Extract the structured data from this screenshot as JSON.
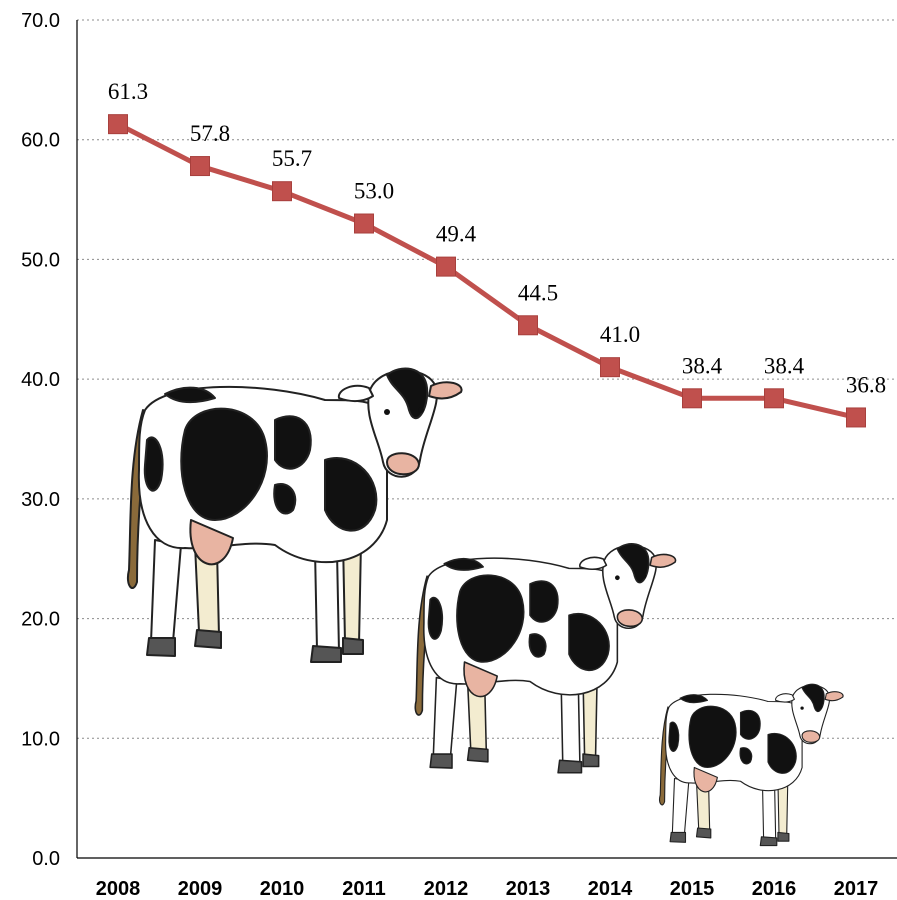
{
  "chart_data": {
    "type": "line",
    "title": "",
    "xlabel": "",
    "ylabel": "",
    "ylim": [
      0,
      70
    ],
    "yticks": [
      "0.0",
      "10.0",
      "20.0",
      "30.0",
      "40.0",
      "50.0",
      "60.0",
      "70.0"
    ],
    "categories": [
      "2008",
      "2009",
      "2010",
      "2011",
      "2012",
      "2013",
      "2014",
      "2015",
      "2016",
      "2017"
    ],
    "series": [
      {
        "values": [
          61.3,
          57.8,
          55.7,
          53.0,
          49.4,
          44.5,
          41.0,
          38.4,
          38.4,
          36.8
        ],
        "labels": [
          "61.3",
          "57.8",
          "55.7",
          "53.0",
          "49.4",
          "44.5",
          "41.0",
          "38.4",
          "38.4",
          "36.8"
        ],
        "color": "#c0504d",
        "marker": "square"
      }
    ],
    "grid": "horizontal-dotted",
    "legend": "none",
    "decoration": "three holstein-cow illustrations of decreasing size"
  }
}
